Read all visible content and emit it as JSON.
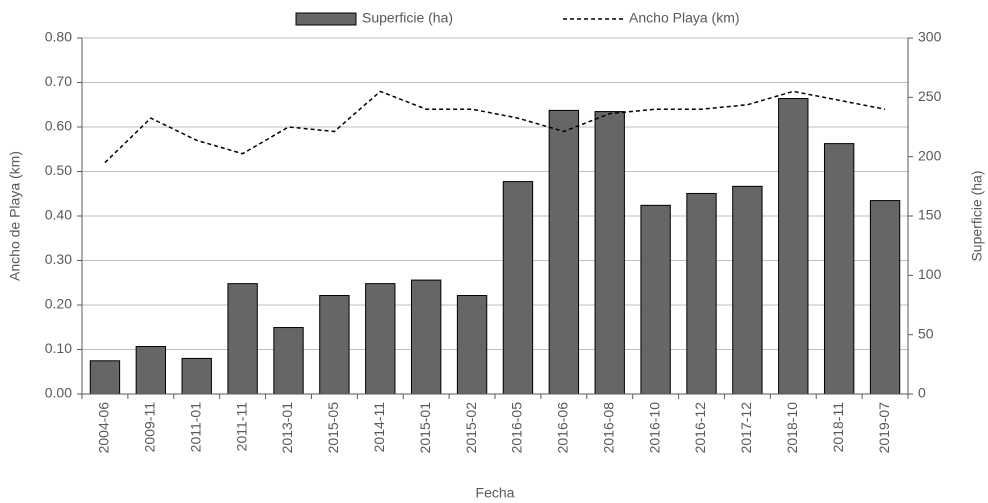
{
  "chart_data": {
    "type": "combo",
    "x_label": "Fecha",
    "y_label": "Ancho de Playa (km)",
    "y2_label": "Superficie (ha)",
    "categories": [
      "2004-06",
      "2009-11",
      "2011-01",
      "2011-11",
      "2013-01",
      "2015-05",
      "2014-11",
      "2015-01",
      "2015-02",
      "2016-05",
      "2016-06",
      "2016-08",
      "2016-10",
      "2016-12",
      "2017-12",
      "2018-10",
      "2018-11",
      "2019-07"
    ],
    "series": [
      {
        "name": "Superficie (ha)",
        "type": "bar",
        "axis": "y2",
        "color": "#666666",
        "values": [
          28,
          40,
          30,
          93,
          56,
          83,
          93,
          96,
          83,
          179,
          239,
          238,
          159,
          169,
          175,
          249,
          211,
          163
        ]
      },
      {
        "name": "Ancho Playa (km)",
        "type": "line",
        "axis": "y",
        "color": "#000000",
        "values": [
          0.52,
          0.62,
          0.57,
          0.54,
          0.6,
          0.59,
          0.68,
          0.64,
          0.64,
          0.62,
          0.59,
          0.63,
          0.64,
          0.64,
          0.65,
          0.68,
          0.66,
          0.64
        ]
      }
    ],
    "ylim": [
      0,
      0.8
    ],
    "yticks": [
      {
        "value": 0,
        "label": "0.00"
      },
      {
        "value": 0.1,
        "label": "0.10"
      },
      {
        "value": 0.2,
        "label": "0.20"
      },
      {
        "value": 0.3,
        "label": "0.30"
      },
      {
        "value": 0.4,
        "label": "0.40"
      },
      {
        "value": 0.5,
        "label": "0.50"
      },
      {
        "value": 0.6,
        "label": "0.60"
      },
      {
        "value": 0.7,
        "label": "0.70"
      },
      {
        "value": 0.8,
        "label": "0.80"
      }
    ],
    "y2lim": [
      0,
      300
    ],
    "y2ticks": [
      0,
      50,
      100,
      150,
      200,
      250,
      300
    ],
    "grid": true,
    "legend": "top"
  }
}
